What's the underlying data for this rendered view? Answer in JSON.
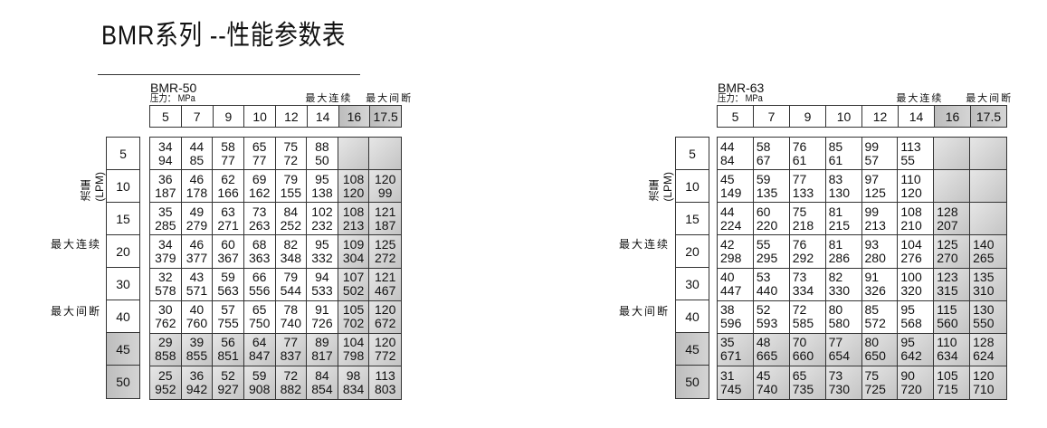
{
  "title": "BMR系列 --性能参数表",
  "pressure_label": "压力： MPa",
  "flow_label": "流量(LPM)",
  "max_continuous": "最大连续",
  "max_intermittent": "最大间断",
  "pressures": [
    "5",
    "7",
    "9",
    "10",
    "12",
    "14",
    "16",
    "17.5"
  ],
  "flows": [
    "5",
    "10",
    "15",
    "20",
    "30",
    "40",
    "45",
    "50"
  ],
  "shaded_color": "#c8c8c8",
  "tables": [
    {
      "model": "BMR-50",
      "rows": [
        [
          [
            "34",
            "94"
          ],
          [
            "44",
            "85"
          ],
          [
            "58",
            "77"
          ],
          [
            "65",
            "77"
          ],
          [
            "75",
            "72"
          ],
          [
            "88",
            "50"
          ],
          null,
          null
        ],
        [
          [
            "36",
            "187"
          ],
          [
            "46",
            "178"
          ],
          [
            "62",
            "166"
          ],
          [
            "69",
            "162"
          ],
          [
            "79",
            "155"
          ],
          [
            "95",
            "138"
          ],
          [
            "108",
            "120"
          ],
          [
            "120",
            "99"
          ]
        ],
        [
          [
            "35",
            "285"
          ],
          [
            "49",
            "279"
          ],
          [
            "63",
            "271"
          ],
          [
            "73",
            "263"
          ],
          [
            "84",
            "252"
          ],
          [
            "102",
            "232"
          ],
          [
            "108",
            "213"
          ],
          [
            "121",
            "187"
          ]
        ],
        [
          [
            "34",
            "379"
          ],
          [
            "46",
            "377"
          ],
          [
            "60",
            "367"
          ],
          [
            "68",
            "363"
          ],
          [
            "82",
            "348"
          ],
          [
            "95",
            "332"
          ],
          [
            "109",
            "304"
          ],
          [
            "125",
            "272"
          ]
        ],
        [
          [
            "32",
            "578"
          ],
          [
            "43",
            "571"
          ],
          [
            "59",
            "563"
          ],
          [
            "66",
            "556"
          ],
          [
            "79",
            "544"
          ],
          [
            "94",
            "533"
          ],
          [
            "107",
            "502"
          ],
          [
            "121",
            "467"
          ]
        ],
        [
          [
            "30",
            "762"
          ],
          [
            "40",
            "760"
          ],
          [
            "57",
            "755"
          ],
          [
            "65",
            "750"
          ],
          [
            "78",
            "740"
          ],
          [
            "91",
            "726"
          ],
          [
            "105",
            "702"
          ],
          [
            "120",
            "672"
          ]
        ],
        [
          [
            "29",
            "858"
          ],
          [
            "39",
            "855"
          ],
          [
            "56",
            "851"
          ],
          [
            "64",
            "847"
          ],
          [
            "77",
            "837"
          ],
          [
            "89",
            "817"
          ],
          [
            "104",
            "798"
          ],
          [
            "120",
            "772"
          ]
        ],
        [
          [
            "25",
            "952"
          ],
          [
            "36",
            "942"
          ],
          [
            "52",
            "927"
          ],
          [
            "59",
            "908"
          ],
          [
            "72",
            "882"
          ],
          [
            "84",
            "854"
          ],
          [
            "98",
            "834"
          ],
          [
            "113",
            "803"
          ]
        ]
      ]
    },
    {
      "model": "BMR-63",
      "rows": [
        [
          [
            "44",
            "84"
          ],
          [
            "58",
            "67"
          ],
          [
            "76",
            "61"
          ],
          [
            "85",
            "61"
          ],
          [
            "99",
            "57"
          ],
          [
            "113",
            "55"
          ],
          null,
          null
        ],
        [
          [
            "45",
            "149"
          ],
          [
            "59",
            "135"
          ],
          [
            "77",
            "133"
          ],
          [
            "83",
            "130"
          ],
          [
            "97",
            "125"
          ],
          [
            "110",
            "120"
          ],
          null,
          null
        ],
        [
          [
            "44",
            "224"
          ],
          [
            "60",
            "220"
          ],
          [
            "75",
            "218"
          ],
          [
            "81",
            "215"
          ],
          [
            "99",
            "213"
          ],
          [
            "108",
            "210"
          ],
          [
            "128",
            "207"
          ],
          null
        ],
        [
          [
            "42",
            "298"
          ],
          [
            "55",
            "295"
          ],
          [
            "76",
            "292"
          ],
          [
            "81",
            "286"
          ],
          [
            "93",
            "280"
          ],
          [
            "104",
            "276"
          ],
          [
            "125",
            "270"
          ],
          [
            "140",
            "265"
          ]
        ],
        [
          [
            "40",
            "447"
          ],
          [
            "53",
            "440"
          ],
          [
            "73",
            "334"
          ],
          [
            "82",
            "330"
          ],
          [
            "91",
            "326"
          ],
          [
            "100",
            "320"
          ],
          [
            "123",
            "315"
          ],
          [
            "135",
            "310"
          ]
        ],
        [
          [
            "38",
            "596"
          ],
          [
            "52",
            "593"
          ],
          [
            "72",
            "585"
          ],
          [
            "80",
            "580"
          ],
          [
            "85",
            "572"
          ],
          [
            "95",
            "568"
          ],
          [
            "115",
            "560"
          ],
          [
            "130",
            "550"
          ]
        ],
        [
          [
            "35",
            "671"
          ],
          [
            "48",
            "665"
          ],
          [
            "70",
            "660"
          ],
          [
            "77",
            "654"
          ],
          [
            "80",
            "650"
          ],
          [
            "95",
            "642"
          ],
          [
            "110",
            "634"
          ],
          [
            "128",
            "624"
          ]
        ],
        [
          [
            "31",
            "745"
          ],
          [
            "45",
            "740"
          ],
          [
            "65",
            "735"
          ],
          [
            "73",
            "730"
          ],
          [
            "75",
            "725"
          ],
          [
            "90",
            "720"
          ],
          [
            "105",
            "715"
          ],
          [
            "120",
            "710"
          ]
        ]
      ]
    }
  ]
}
